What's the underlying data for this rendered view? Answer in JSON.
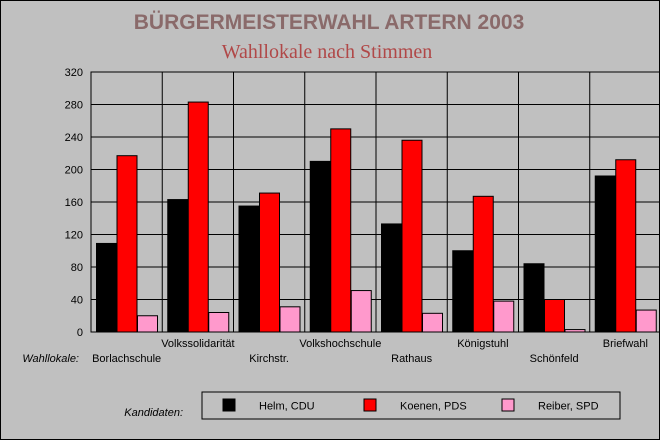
{
  "chart_data": {
    "type": "bar",
    "title": "BÜRGERMEISTERWAHL ARTERN 2003",
    "subtitle": "Wahllokale nach Stimmen",
    "xlabel": "Wahllokale:",
    "legend_title": "Kandidaten:",
    "ylim": [
      0,
      320
    ],
    "yticks": [
      0,
      40,
      80,
      120,
      160,
      200,
      240,
      280,
      320
    ],
    "grid": true,
    "categories": [
      "Borlachschule",
      "Volkssolidarität",
      "Kirchstr.",
      "Volkshochschule",
      "Rathaus",
      "Königstuhl",
      "Schönfeld",
      "Briefwahl"
    ],
    "series": [
      {
        "name": "Helm, CDU",
        "color": "#000000",
        "values": [
          109,
          163,
          155,
          210,
          133,
          100,
          84,
          192
        ]
      },
      {
        "name": "Koenen, PDS",
        "color": "#ff0000",
        "values": [
          217,
          283,
          171,
          250,
          236,
          167,
          40,
          212
        ]
      },
      {
        "name": "Reiber, SPD",
        "color": "#ff99cc",
        "values": [
          20,
          24,
          31,
          51,
          23,
          38,
          3,
          27
        ]
      }
    ]
  }
}
